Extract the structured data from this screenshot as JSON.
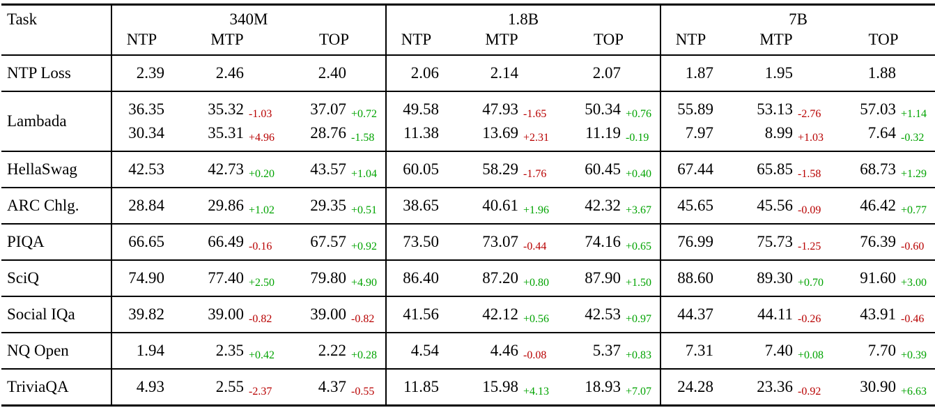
{
  "table": {
    "task_header": "Task",
    "colors": {
      "green": "#00A300",
      "red": "#B80000"
    },
    "groups": [
      {
        "label": "340M",
        "columns": [
          "NTP",
          "MTP",
          "TOP"
        ]
      },
      {
        "label": "1.8B",
        "columns": [
          "NTP",
          "MTP",
          "TOP"
        ]
      },
      {
        "label": "7B",
        "columns": [
          "NTP",
          "MTP",
          "TOP"
        ]
      }
    ],
    "rows": [
      {
        "task": "NTP Loss",
        "lines": [
          {
            "cells": [
              {
                "v": "2.39"
              },
              {
                "v": "2.46"
              },
              {
                "v": "2.40"
              },
              {
                "v": "2.06"
              },
              {
                "v": "2.14"
              },
              {
                "v": "2.07"
              },
              {
                "v": "1.87"
              },
              {
                "v": "1.95"
              },
              {
                "v": "1.88"
              }
            ]
          }
        ]
      },
      {
        "task": "Lambada",
        "lines": [
          {
            "cells": [
              {
                "v": "36.35"
              },
              {
                "v": "35.32",
                "d": "-1.03",
                "c": "red"
              },
              {
                "v": "37.07",
                "d": "+0.72",
                "c": "green"
              },
              {
                "v": "49.58"
              },
              {
                "v": "47.93",
                "d": "-1.65",
                "c": "red"
              },
              {
                "v": "50.34",
                "d": "+0.76",
                "c": "green"
              },
              {
                "v": "55.89"
              },
              {
                "v": "53.13",
                "d": "-2.76",
                "c": "red"
              },
              {
                "v": "57.03",
                "d": "+1.14",
                "c": "green"
              }
            ]
          },
          {
            "cells": [
              {
                "v": "30.34"
              },
              {
                "v": "35.31",
                "d": "+4.96",
                "c": "red"
              },
              {
                "v": "28.76",
                "d": "-1.58",
                "c": "green"
              },
              {
                "v": "11.38"
              },
              {
                "v": "13.69",
                "d": "+2.31",
                "c": "red"
              },
              {
                "v": "11.19",
                "d": "-0.19",
                "c": "green"
              },
              {
                "v": "7.97"
              },
              {
                "v": "8.99",
                "d": "+1.03",
                "c": "red"
              },
              {
                "v": "7.64",
                "d": "-0.32",
                "c": "green"
              }
            ]
          }
        ]
      },
      {
        "task": "HellaSwag",
        "lines": [
          {
            "cells": [
              {
                "v": "42.53"
              },
              {
                "v": "42.73",
                "d": "+0.20",
                "c": "green"
              },
              {
                "v": "43.57",
                "d": "+1.04",
                "c": "green"
              },
              {
                "v": "60.05"
              },
              {
                "v": "58.29",
                "d": "-1.76",
                "c": "red"
              },
              {
                "v": "60.45",
                "d": "+0.40",
                "c": "green"
              },
              {
                "v": "67.44"
              },
              {
                "v": "65.85",
                "d": "-1.58",
                "c": "red"
              },
              {
                "v": "68.73",
                "d": "+1.29",
                "c": "green"
              }
            ]
          }
        ]
      },
      {
        "task": "ARC Chlg.",
        "lines": [
          {
            "cells": [
              {
                "v": "28.84"
              },
              {
                "v": "29.86",
                "d": "+1.02",
                "c": "green"
              },
              {
                "v": "29.35",
                "d": "+0.51",
                "c": "green"
              },
              {
                "v": "38.65"
              },
              {
                "v": "40.61",
                "d": "+1.96",
                "c": "green"
              },
              {
                "v": "42.32",
                "d": "+3.67",
                "c": "green"
              },
              {
                "v": "45.65"
              },
              {
                "v": "45.56",
                "d": "-0.09",
                "c": "red"
              },
              {
                "v": "46.42",
                "d": "+0.77",
                "c": "green"
              }
            ]
          }
        ]
      },
      {
        "task": "PIQA",
        "lines": [
          {
            "cells": [
              {
                "v": "66.65"
              },
              {
                "v": "66.49",
                "d": "-0.16",
                "c": "red"
              },
              {
                "v": "67.57",
                "d": "+0.92",
                "c": "green"
              },
              {
                "v": "73.50"
              },
              {
                "v": "73.07",
                "d": "-0.44",
                "c": "red"
              },
              {
                "v": "74.16",
                "d": "+0.65",
                "c": "green"
              },
              {
                "v": "76.99"
              },
              {
                "v": "75.73",
                "d": "-1.25",
                "c": "red"
              },
              {
                "v": "76.39",
                "d": "-0.60",
                "c": "red"
              }
            ]
          }
        ]
      },
      {
        "task": "SciQ",
        "lines": [
          {
            "cells": [
              {
                "v": "74.90"
              },
              {
                "v": "77.40",
                "d": "+2.50",
                "c": "green"
              },
              {
                "v": "79.80",
                "d": "+4.90",
                "c": "green"
              },
              {
                "v": "86.40"
              },
              {
                "v": "87.20",
                "d": "+0.80",
                "c": "green"
              },
              {
                "v": "87.90",
                "d": "+1.50",
                "c": "green"
              },
              {
                "v": "88.60"
              },
              {
                "v": "89.30",
                "d": "+0.70",
                "c": "green"
              },
              {
                "v": "91.60",
                "d": "+3.00",
                "c": "green"
              }
            ]
          }
        ]
      },
      {
        "task": "Social IQa",
        "lines": [
          {
            "cells": [
              {
                "v": "39.82"
              },
              {
                "v": "39.00",
                "d": "-0.82",
                "c": "red"
              },
              {
                "v": "39.00",
                "d": "-0.82",
                "c": "red"
              },
              {
                "v": "41.56"
              },
              {
                "v": "42.12",
                "d": "+0.56",
                "c": "green"
              },
              {
                "v": "42.53",
                "d": "+0.97",
                "c": "green"
              },
              {
                "v": "44.37"
              },
              {
                "v": "44.11",
                "d": "-0.26",
                "c": "red"
              },
              {
                "v": "43.91",
                "d": "-0.46",
                "c": "red"
              }
            ]
          }
        ]
      },
      {
        "task": "NQ Open",
        "lines": [
          {
            "cells": [
              {
                "v": "1.94"
              },
              {
                "v": "2.35",
                "d": "+0.42",
                "c": "green"
              },
              {
                "v": "2.22",
                "d": "+0.28",
                "c": "green"
              },
              {
                "v": "4.54"
              },
              {
                "v": "4.46",
                "d": "-0.08",
                "c": "red"
              },
              {
                "v": "5.37",
                "d": "+0.83",
                "c": "green"
              },
              {
                "v": "7.31"
              },
              {
                "v": "7.40",
                "d": "+0.08",
                "c": "green"
              },
              {
                "v": "7.70",
                "d": "+0.39",
                "c": "green"
              }
            ]
          }
        ]
      },
      {
        "task": "TriviaQA",
        "lines": [
          {
            "cells": [
              {
                "v": "4.93"
              },
              {
                "v": "2.55",
                "d": "-2.37",
                "c": "red"
              },
              {
                "v": "4.37",
                "d": "-0.55",
                "c": "red"
              },
              {
                "v": "11.85"
              },
              {
                "v": "15.98",
                "d": "+4.13",
                "c": "green"
              },
              {
                "v": "18.93",
                "d": "+7.07",
                "c": "green"
              },
              {
                "v": "24.28"
              },
              {
                "v": "23.36",
                "d": "-0.92",
                "c": "red"
              },
              {
                "v": "30.90",
                "d": "+6.63",
                "c": "green"
              }
            ]
          }
        ]
      }
    ]
  }
}
